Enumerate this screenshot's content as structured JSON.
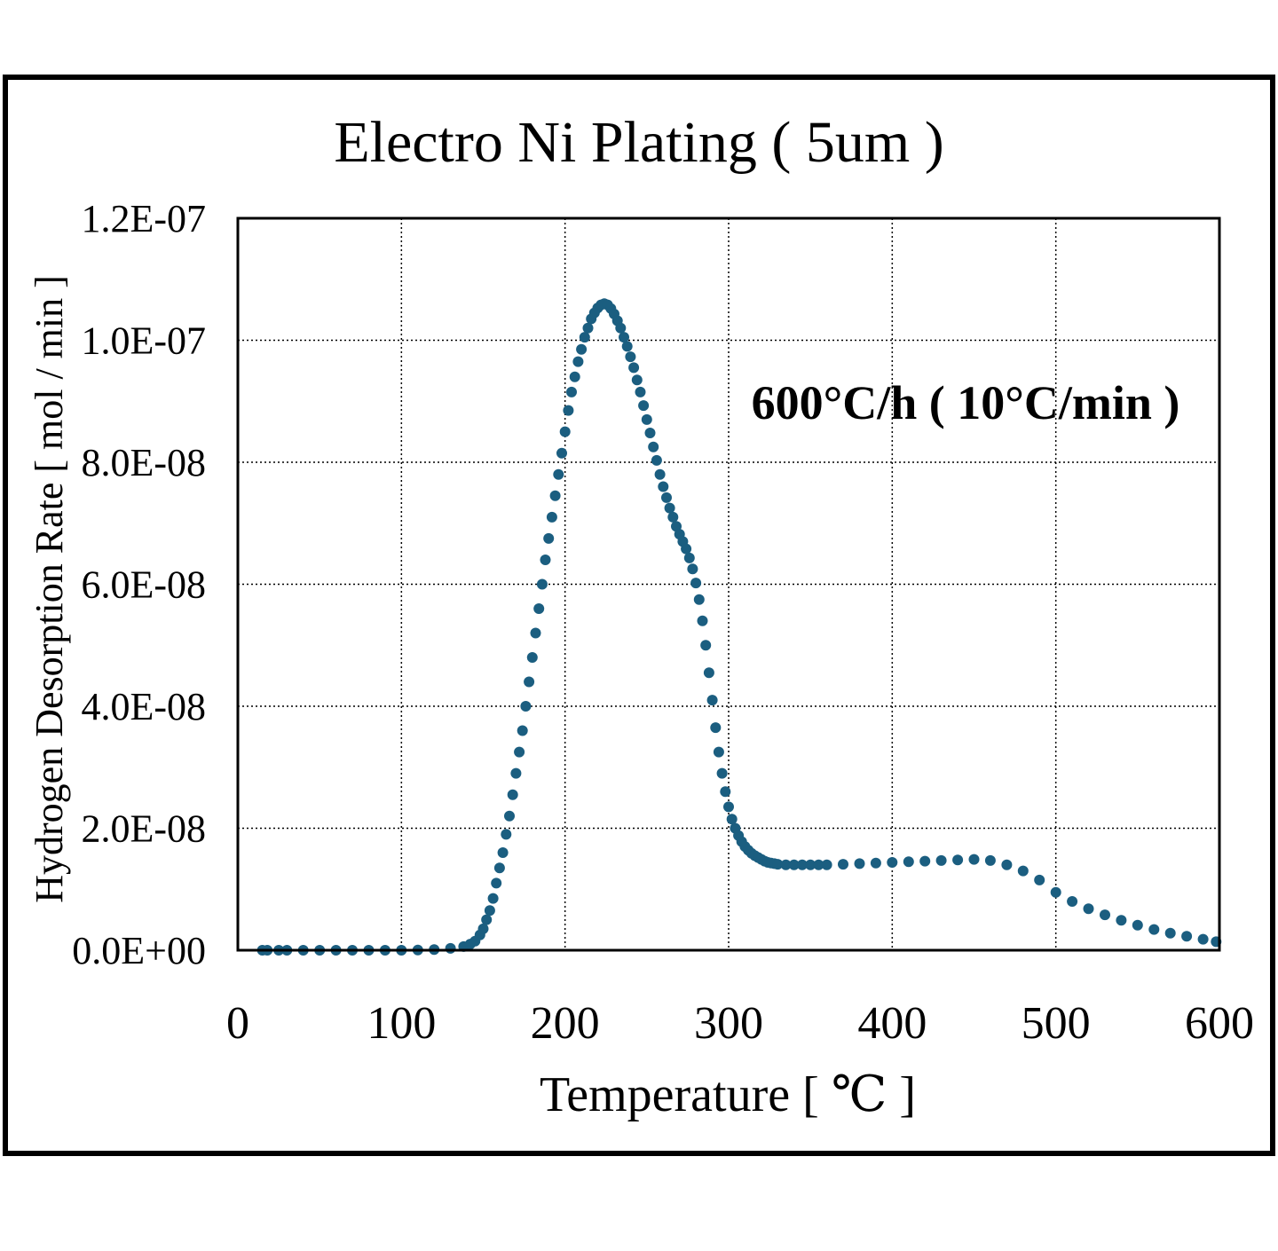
{
  "chart_data": {
    "type": "scatter",
    "title": "Electro Ni Plating ( 5um )",
    "annotation": "600°C/h ( 10°C/min )",
    "xlabel": "Temperature [ ℃ ]",
    "ylabel": "Hydrogen Desorption Rate [ mol / min ]",
    "xlim": [
      0,
      600
    ],
    "ylim": [
      0,
      1.2e-07
    ],
    "x_ticks": [
      0,
      100,
      200,
      300,
      400,
      500,
      600
    ],
    "x_tick_labels": [
      "0",
      "100",
      "200",
      "300",
      "400",
      "500",
      "600"
    ],
    "y_ticks": [
      0,
      2e-08,
      4e-08,
      6e-08,
      8e-08,
      1e-07,
      1.2e-07
    ],
    "y_tick_labels": [
      "0.0E+00",
      "2.0E-08",
      "4.0E-08",
      "6.0E-08",
      "8.0E-08",
      "1.0E-07",
      "1.2E-07"
    ],
    "grid": true,
    "marker_color": "#1b5e80",
    "series": [
      {
        "x": [
          15,
          18,
          25,
          30,
          40,
          50,
          60,
          70,
          80,
          90,
          100,
          110,
          120,
          130,
          138,
          142,
          145,
          148,
          150,
          152,
          154,
          156,
          158,
          160,
          162,
          164,
          166,
          168,
          170,
          172,
          174,
          176,
          178,
          180,
          182,
          184,
          186,
          188,
          190,
          192,
          194,
          196,
          198,
          200,
          202,
          204,
          206,
          208,
          210,
          212,
          214,
          216,
          218,
          220,
          222,
          224,
          226,
          228,
          230,
          232,
          234,
          236,
          238,
          240,
          242,
          244,
          246,
          248,
          250,
          252,
          254,
          256,
          258,
          260,
          262,
          264,
          266,
          268,
          270,
          272,
          274,
          276,
          278,
          280,
          282,
          284,
          286,
          288,
          290,
          292,
          294,
          296,
          298,
          300,
          302,
          304,
          306,
          308,
          310,
          312,
          314,
          316,
          318,
          320,
          322,
          324,
          326,
          328,
          330,
          335,
          340,
          345,
          350,
          355,
          360,
          370,
          380,
          390,
          400,
          410,
          420,
          430,
          440,
          450,
          460,
          470,
          480,
          490,
          500,
          510,
          520,
          530,
          540,
          550,
          560,
          570,
          580,
          590,
          598
        ],
        "y": [
          0,
          0,
          0,
          0,
          0,
          0,
          0,
          0,
          0,
          0,
          0,
          5e-11,
          1e-10,
          3e-10,
          6e-10,
          1e-09,
          1.5e-09,
          2.5e-09,
          3.5e-09,
          5e-09,
          6.5e-09,
          8.5e-09,
          1.1e-08,
          1.35e-08,
          1.6e-08,
          1.9e-08,
          2.2e-08,
          2.55e-08,
          2.9e-08,
          3.25e-08,
          3.6e-08,
          4e-08,
          4.4e-08,
          4.8e-08,
          5.2e-08,
          5.6e-08,
          6e-08,
          6.4e-08,
          6.75e-08,
          7.1e-08,
          7.45e-08,
          7.8e-08,
          8.15e-08,
          8.5e-08,
          8.85e-08,
          9.15e-08,
          9.4e-08,
          9.65e-08,
          9.85e-08,
          1.005e-07,
          1.02e-07,
          1.035e-07,
          1.045e-07,
          1.053e-07,
          1.058e-07,
          1.06e-07,
          1.058e-07,
          1.052e-07,
          1.043e-07,
          1.032e-07,
          1.02e-07,
          1.005e-07,
          9.9e-08,
          9.73e-08,
          9.55e-08,
          9.35e-08,
          9.15e-08,
          8.93e-08,
          8.7e-08,
          8.48e-08,
          8.25e-08,
          8.03e-08,
          7.8e-08,
          7.6e-08,
          7.42e-08,
          7.25e-08,
          7.1e-08,
          6.95e-08,
          6.82e-08,
          6.7e-08,
          6.58e-08,
          6.43e-08,
          6.25e-08,
          6.02e-08,
          5.75e-08,
          5.4e-08,
          5e-08,
          4.55e-08,
          4.1e-08,
          3.65e-08,
          3.25e-08,
          2.9e-08,
          2.6e-08,
          2.35e-08,
          2.15e-08,
          2e-08,
          1.88e-08,
          1.78e-08,
          1.7e-08,
          1.64e-08,
          1.59e-08,
          1.55e-08,
          1.52e-08,
          1.49e-08,
          1.46e-08,
          1.44e-08,
          1.43e-08,
          1.42e-08,
          1.41e-08,
          1.4e-08,
          1.4e-08,
          1.4e-08,
          1.4e-08,
          1.4e-08,
          1.4e-08,
          1.41e-08,
          1.42e-08,
          1.43e-08,
          1.44e-08,
          1.45e-08,
          1.46e-08,
          1.47e-08,
          1.48e-08,
          1.49e-08,
          1.47e-08,
          1.4e-08,
          1.3e-08,
          1.15e-08,
          9.5e-09,
          8e-09,
          6.8e-09,
          5.8e-09,
          4.9e-09,
          4.1e-09,
          3.4e-09,
          2.8e-09,
          2.3e-09,
          1.8e-09,
          1.4e-09
        ]
      }
    ]
  }
}
